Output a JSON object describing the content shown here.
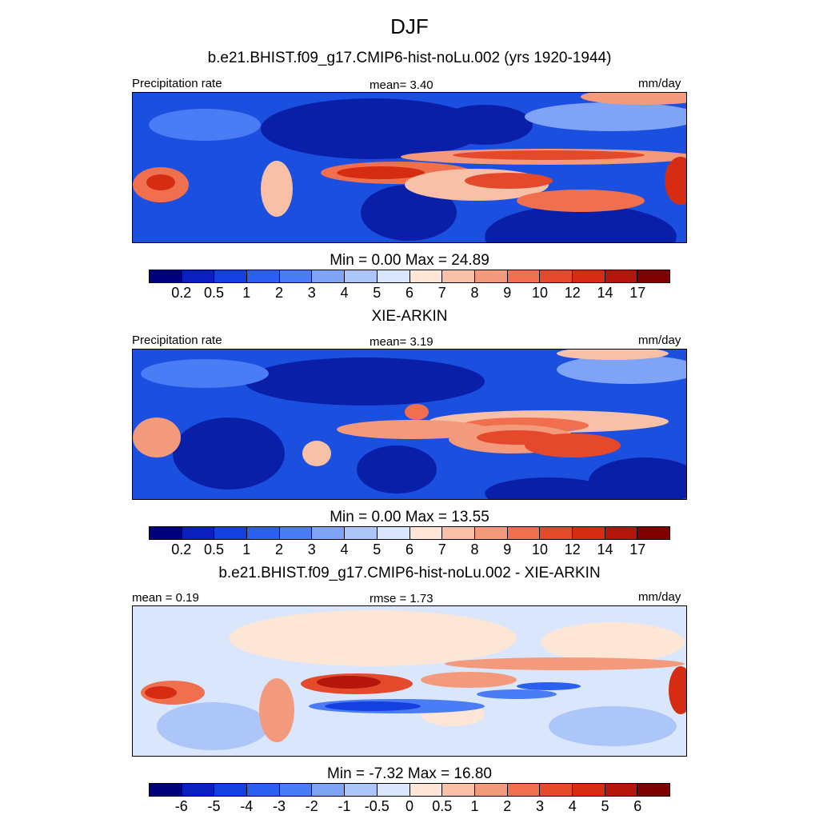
{
  "figure": {
    "title": "DJF",
    "panels": [
      {
        "title": "b.e21.BHIST.f09_g17.CMIP6-hist-noLu.002 (yrs 1920-1944)",
        "left": "Precipitation rate",
        "center": "mean=   3.40",
        "right": "mm/day",
        "minmax": "Min =   0.00 Max =  24.89"
      },
      {
        "title": "XIE-ARKIN",
        "left": "Precipitation rate",
        "center": "mean=   3.19",
        "right": "mm/day",
        "minmax": "Min =   0.00 Max =  13.55"
      },
      {
        "title": "b.e21.BHIST.f09_g17.CMIP6-hist-noLu.002 - XIE-ARKIN",
        "left": "mean =   0.19",
        "center": "rmse =   1.73",
        "right": "mm/day",
        "minmax": "Min =  -7.32 Max =  16.80"
      }
    ]
  },
  "colorbars": {
    "precip": {
      "colors": [
        "#00007f",
        "#0a1fbf",
        "#1540e0",
        "#2a5ff0",
        "#4a7cf5",
        "#7fa3f7",
        "#adc6fa",
        "#d9e6fb",
        "#fde6d6",
        "#f9c0a8",
        "#f49a7c",
        "#ef6f4e",
        "#e4492c",
        "#d62d12",
        "#b5150b",
        "#7f0000"
      ],
      "ticks": [
        "0.2",
        "0.5",
        "1",
        "2",
        "3",
        "4",
        "5",
        "6",
        "7",
        "8",
        "9",
        "10",
        "12",
        "14",
        "17"
      ]
    },
    "diff": {
      "colors": [
        "#00007f",
        "#0a1fbf",
        "#1540e0",
        "#2a5ff0",
        "#4a7cf5",
        "#7fa3f7",
        "#adc6fa",
        "#d9e6fb",
        "#fde6d6",
        "#f9c0a8",
        "#f49a7c",
        "#ef6f4e",
        "#e4492c",
        "#d62d12",
        "#b5150b",
        "#7f0000"
      ],
      "ticks": [
        "-6",
        "-5",
        "-4",
        "-3",
        "-2",
        "-1",
        "-0.5",
        "0",
        "0.5",
        "1",
        "2",
        "3",
        "4",
        "5",
        "6"
      ]
    }
  },
  "chart_data": [
    {
      "type": "heatmap",
      "title": "b.e21.BHIST.f09_g17.CMIP6-hist-noLu.002 (yrs 1920-1944)",
      "variable": "Precipitation rate",
      "units": "mm/day",
      "mean": 3.4,
      "min": 0.0,
      "max": 24.89,
      "levels": [
        0.2,
        0.5,
        1,
        2,
        3,
        4,
        5,
        6,
        7,
        8,
        9,
        10,
        12,
        14,
        17
      ]
    },
    {
      "type": "heatmap",
      "title": "XIE-ARKIN",
      "variable": "Precipitation rate",
      "units": "mm/day",
      "mean": 3.19,
      "min": 0.0,
      "max": 13.55,
      "levels": [
        0.2,
        0.5,
        1,
        2,
        3,
        4,
        5,
        6,
        7,
        8,
        9,
        10,
        12,
        14,
        17
      ]
    },
    {
      "type": "heatmap",
      "title": "b.e21.BHIST.f09_g17.CMIP6-hist-noLu.002 - XIE-ARKIN",
      "units": "mm/day",
      "mean": 0.19,
      "rmse": 1.73,
      "min": -7.32,
      "max": 16.8,
      "levels": [
        -6,
        -5,
        -4,
        -3,
        -2,
        -1,
        -0.5,
        0,
        0.5,
        1,
        2,
        3,
        4,
        5,
        6
      ]
    }
  ]
}
